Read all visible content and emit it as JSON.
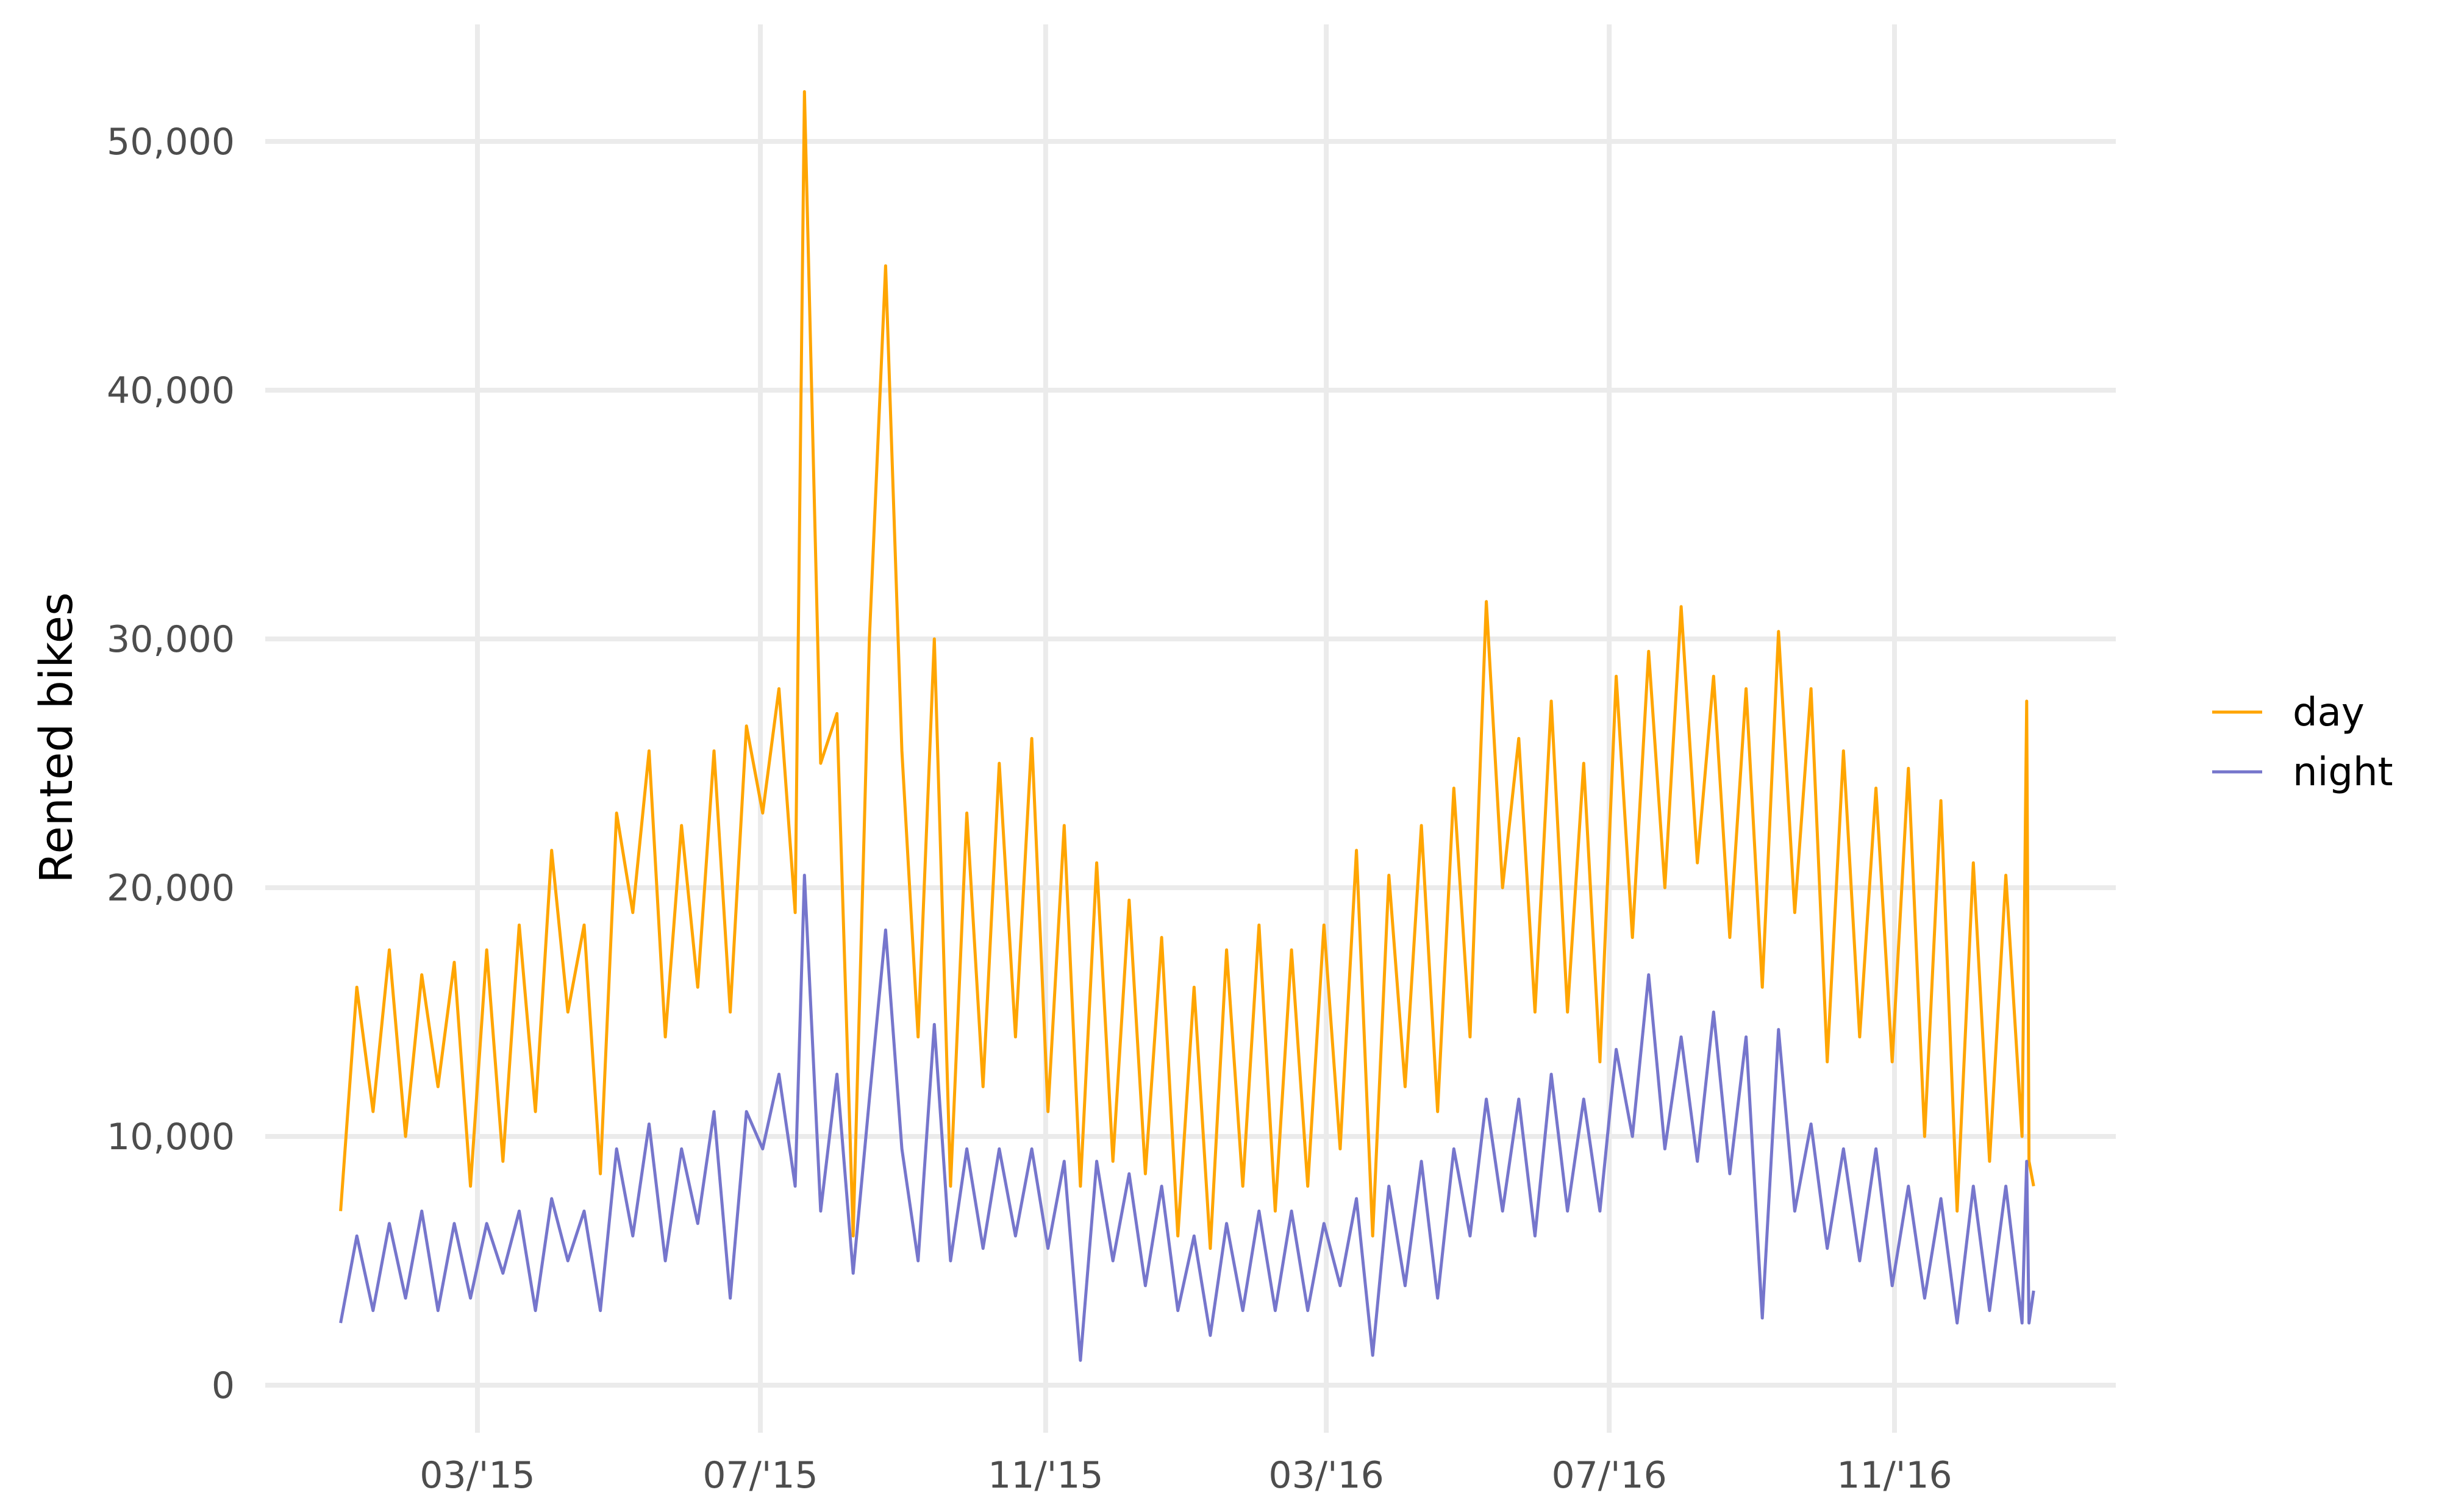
{
  "chart_data": {
    "type": "line",
    "title": "",
    "xlabel": "",
    "ylabel": "Rented bikes",
    "x_range": [
      "2015-01-01",
      "2016-12-31"
    ],
    "ylim": [
      0,
      55000
    ],
    "y_ticks": [
      {
        "value": 0,
        "label": "0"
      },
      {
        "value": 10000,
        "label": "10,000"
      },
      {
        "value": 20000,
        "label": "20,000"
      },
      {
        "value": 30000,
        "label": "30,000"
      },
      {
        "value": 40000,
        "label": "40,000"
      },
      {
        "value": 50000,
        "label": "50,000"
      }
    ],
    "x_ticks": [
      {
        "date": "2015-03-01",
        "label": "03/'15"
      },
      {
        "date": "2015-07-01",
        "label": "07/'15"
      },
      {
        "date": "2015-11-01",
        "label": "11/'15"
      },
      {
        "date": "2016-03-01",
        "label": "03/'16"
      },
      {
        "date": "2016-07-01",
        "label": "07/'16"
      },
      {
        "date": "2016-11-01",
        "label": "11/'16"
      }
    ],
    "grid": true,
    "legend_position": "right",
    "series": [
      {
        "name": "day",
        "color": "#FFA500",
        "points": [
          [
            "2015-01-01",
            7000
          ],
          [
            "2015-01-08",
            16000
          ],
          [
            "2015-01-15",
            11000
          ],
          [
            "2015-01-22",
            17500
          ],
          [
            "2015-01-29",
            10000
          ],
          [
            "2015-02-05",
            16500
          ],
          [
            "2015-02-12",
            12000
          ],
          [
            "2015-02-19",
            17000
          ],
          [
            "2015-02-26",
            8000
          ],
          [
            "2015-03-05",
            17500
          ],
          [
            "2015-03-12",
            9000
          ],
          [
            "2015-03-19",
            18500
          ],
          [
            "2015-03-26",
            11000
          ],
          [
            "2015-04-02",
            21500
          ],
          [
            "2015-04-09",
            15000
          ],
          [
            "2015-04-16",
            18500
          ],
          [
            "2015-04-23",
            8500
          ],
          [
            "2015-04-30",
            23000
          ],
          [
            "2015-05-07",
            19000
          ],
          [
            "2015-05-14",
            25500
          ],
          [
            "2015-05-21",
            14000
          ],
          [
            "2015-05-28",
            22500
          ],
          [
            "2015-06-04",
            16000
          ],
          [
            "2015-06-11",
            25500
          ],
          [
            "2015-06-18",
            15000
          ],
          [
            "2015-06-25",
            26500
          ],
          [
            "2015-07-02",
            23000
          ],
          [
            "2015-07-09",
            28000
          ],
          [
            "2015-07-16",
            19000
          ],
          [
            "2015-07-20",
            52000
          ],
          [
            "2015-07-27",
            25000
          ],
          [
            "2015-08-03",
            27000
          ],
          [
            "2015-08-10",
            6000
          ],
          [
            "2015-08-17",
            30000
          ],
          [
            "2015-08-24",
            45000
          ],
          [
            "2015-08-31",
            25500
          ],
          [
            "2015-09-07",
            14000
          ],
          [
            "2015-09-14",
            30000
          ],
          [
            "2015-09-21",
            8000
          ],
          [
            "2015-09-28",
            23000
          ],
          [
            "2015-10-05",
            12000
          ],
          [
            "2015-10-12",
            25000
          ],
          [
            "2015-10-19",
            14000
          ],
          [
            "2015-10-26",
            26000
          ],
          [
            "2015-11-02",
            11000
          ],
          [
            "2015-11-09",
            22500
          ],
          [
            "2015-11-16",
            8000
          ],
          [
            "2015-11-23",
            21000
          ],
          [
            "2015-11-30",
            9000
          ],
          [
            "2015-12-07",
            19500
          ],
          [
            "2015-12-14",
            8500
          ],
          [
            "2015-12-21",
            18000
          ],
          [
            "2015-12-28",
            6000
          ],
          [
            "2016-01-04",
            16000
          ],
          [
            "2016-01-11",
            5500
          ],
          [
            "2016-01-18",
            17500
          ],
          [
            "2016-01-25",
            8000
          ],
          [
            "2016-02-01",
            18500
          ],
          [
            "2016-02-08",
            7000
          ],
          [
            "2016-02-15",
            17500
          ],
          [
            "2016-02-22",
            8000
          ],
          [
            "2016-02-29",
            18500
          ],
          [
            "2016-03-07",
            9500
          ],
          [
            "2016-03-14",
            21500
          ],
          [
            "2016-03-21",
            6000
          ],
          [
            "2016-03-28",
            20500
          ],
          [
            "2016-04-04",
            12000
          ],
          [
            "2016-04-11",
            22500
          ],
          [
            "2016-04-18",
            11000
          ],
          [
            "2016-04-25",
            24000
          ],
          [
            "2016-05-02",
            14000
          ],
          [
            "2016-05-09",
            31500
          ],
          [
            "2016-05-16",
            20000
          ],
          [
            "2016-05-23",
            26000
          ],
          [
            "2016-05-30",
            15000
          ],
          [
            "2016-06-06",
            27500
          ],
          [
            "2016-06-13",
            15000
          ],
          [
            "2016-06-20",
            25000
          ],
          [
            "2016-06-27",
            13000
          ],
          [
            "2016-07-04",
            28500
          ],
          [
            "2016-07-11",
            18000
          ],
          [
            "2016-07-18",
            29500
          ],
          [
            "2016-07-25",
            20000
          ],
          [
            "2016-08-01",
            31300
          ],
          [
            "2016-08-08",
            21000
          ],
          [
            "2016-08-15",
            28500
          ],
          [
            "2016-08-22",
            18000
          ],
          [
            "2016-08-29",
            28000
          ],
          [
            "2016-09-05",
            16000
          ],
          [
            "2016-09-12",
            30300
          ],
          [
            "2016-09-19",
            19000
          ],
          [
            "2016-09-26",
            28000
          ],
          [
            "2016-10-03",
            13000
          ],
          [
            "2016-10-10",
            25500
          ],
          [
            "2016-10-17",
            14000
          ],
          [
            "2016-10-24",
            24000
          ],
          [
            "2016-10-31",
            13000
          ],
          [
            "2016-11-07",
            24800
          ],
          [
            "2016-11-14",
            10000
          ],
          [
            "2016-11-21",
            23500
          ],
          [
            "2016-11-28",
            7000
          ],
          [
            "2016-12-05",
            21000
          ],
          [
            "2016-12-12",
            9000
          ],
          [
            "2016-12-19",
            20500
          ],
          [
            "2016-12-26",
            10000
          ],
          [
            "2016-12-28",
            27500
          ],
          [
            "2016-12-29",
            9000
          ],
          [
            "2016-12-31",
            8000
          ]
        ]
      },
      {
        "name": "night",
        "color": "#7676CC",
        "points": [
          [
            "2015-01-01",
            2500
          ],
          [
            "2015-01-08",
            6000
          ],
          [
            "2015-01-15",
            3000
          ],
          [
            "2015-01-22",
            6500
          ],
          [
            "2015-01-29",
            3500
          ],
          [
            "2015-02-05",
            7000
          ],
          [
            "2015-02-12",
            3000
          ],
          [
            "2015-02-19",
            6500
          ],
          [
            "2015-02-26",
            3500
          ],
          [
            "2015-03-05",
            6500
          ],
          [
            "2015-03-12",
            4500
          ],
          [
            "2015-03-19",
            7000
          ],
          [
            "2015-03-26",
            3000
          ],
          [
            "2015-04-02",
            7500
          ],
          [
            "2015-04-09",
            5000
          ],
          [
            "2015-04-16",
            7000
          ],
          [
            "2015-04-23",
            3000
          ],
          [
            "2015-04-30",
            9500
          ],
          [
            "2015-05-07",
            6000
          ],
          [
            "2015-05-14",
            10500
          ],
          [
            "2015-05-21",
            5000
          ],
          [
            "2015-05-28",
            9500
          ],
          [
            "2015-06-04",
            6500
          ],
          [
            "2015-06-11",
            11000
          ],
          [
            "2015-06-18",
            3500
          ],
          [
            "2015-06-25",
            11000
          ],
          [
            "2015-07-02",
            9500
          ],
          [
            "2015-07-09",
            12500
          ],
          [
            "2015-07-16",
            8000
          ],
          [
            "2015-07-20",
            20500
          ],
          [
            "2015-07-27",
            7000
          ],
          [
            "2015-08-03",
            12500
          ],
          [
            "2015-08-10",
            4500
          ],
          [
            "2015-08-17",
            11500
          ],
          [
            "2015-08-24",
            18300
          ],
          [
            "2015-08-31",
            9500
          ],
          [
            "2015-09-07",
            5000
          ],
          [
            "2015-09-14",
            14500
          ],
          [
            "2015-09-21",
            5000
          ],
          [
            "2015-09-28",
            9500
          ],
          [
            "2015-10-05",
            5500
          ],
          [
            "2015-10-12",
            9500
          ],
          [
            "2015-10-19",
            6000
          ],
          [
            "2015-10-26",
            9500
          ],
          [
            "2015-11-02",
            5500
          ],
          [
            "2015-11-09",
            9000
          ],
          [
            "2015-11-16",
            1000
          ],
          [
            "2015-11-23",
            9000
          ],
          [
            "2015-11-30",
            5000
          ],
          [
            "2015-12-07",
            8500
          ],
          [
            "2015-12-14",
            4000
          ],
          [
            "2015-12-21",
            8000
          ],
          [
            "2015-12-28",
            3000
          ],
          [
            "2016-01-04",
            6000
          ],
          [
            "2016-01-11",
            2000
          ],
          [
            "2016-01-18",
            6500
          ],
          [
            "2016-01-25",
            3000
          ],
          [
            "2016-02-01",
            7000
          ],
          [
            "2016-02-08",
            3000
          ],
          [
            "2016-02-15",
            7000
          ],
          [
            "2016-02-22",
            3000
          ],
          [
            "2016-02-29",
            6500
          ],
          [
            "2016-03-07",
            4000
          ],
          [
            "2016-03-14",
            7500
          ],
          [
            "2016-03-21",
            1200
          ],
          [
            "2016-03-28",
            8000
          ],
          [
            "2016-04-04",
            4000
          ],
          [
            "2016-04-11",
            9000
          ],
          [
            "2016-04-18",
            3500
          ],
          [
            "2016-04-25",
            9500
          ],
          [
            "2016-05-02",
            6000
          ],
          [
            "2016-05-09",
            11500
          ],
          [
            "2016-05-16",
            7000
          ],
          [
            "2016-05-23",
            11500
          ],
          [
            "2016-05-30",
            6000
          ],
          [
            "2016-06-06",
            12500
          ],
          [
            "2016-06-13",
            7000
          ],
          [
            "2016-06-20",
            11500
          ],
          [
            "2016-06-27",
            7000
          ],
          [
            "2016-07-04",
            13500
          ],
          [
            "2016-07-11",
            10000
          ],
          [
            "2016-07-18",
            16500
          ],
          [
            "2016-07-25",
            9500
          ],
          [
            "2016-08-01",
            14000
          ],
          [
            "2016-08-08",
            9000
          ],
          [
            "2016-08-15",
            15000
          ],
          [
            "2016-08-22",
            8500
          ],
          [
            "2016-08-29",
            14000
          ],
          [
            "2016-09-05",
            2700
          ],
          [
            "2016-09-12",
            14300
          ],
          [
            "2016-09-19",
            7000
          ],
          [
            "2016-09-26",
            10500
          ],
          [
            "2016-10-03",
            5500
          ],
          [
            "2016-10-10",
            9500
          ],
          [
            "2016-10-17",
            5000
          ],
          [
            "2016-10-24",
            9500
          ],
          [
            "2016-10-31",
            4000
          ],
          [
            "2016-11-07",
            8000
          ],
          [
            "2016-11-14",
            3500
          ],
          [
            "2016-11-21",
            7500
          ],
          [
            "2016-11-28",
            2500
          ],
          [
            "2016-12-05",
            8000
          ],
          [
            "2016-12-12",
            3000
          ],
          [
            "2016-12-19",
            8000
          ],
          [
            "2016-12-26",
            2500
          ],
          [
            "2016-12-28",
            9000
          ],
          [
            "2016-12-29",
            2500
          ],
          [
            "2016-12-31",
            3800
          ]
        ]
      }
    ]
  }
}
